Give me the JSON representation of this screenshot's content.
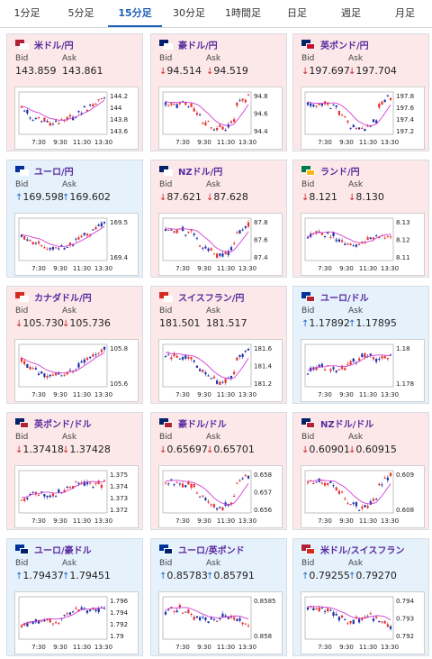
{
  "tabs": [
    {
      "label": "1分足",
      "active": false
    },
    {
      "label": "5分足",
      "active": false
    },
    {
      "label": "15分足",
      "active": true
    },
    {
      "label": "30分足",
      "active": false
    },
    {
      "label": "1時間足",
      "active": false
    },
    {
      "label": "日足",
      "active": false
    },
    {
      "label": "週足",
      "active": false
    },
    {
      "label": "月足",
      "active": false
    }
  ],
  "labels": {
    "bid": "Bid",
    "ask": "Ask"
  },
  "x_ticks": [
    "7:30",
    "9:30",
    "11:30",
    "13:30"
  ],
  "colors": {
    "up": "#1a66c8",
    "down": "#d22626",
    "ma": "#d13fd1",
    "candle_up": "#e53030",
    "candle_down": "#1f2fa8",
    "tint_pink": "#fce8e8",
    "tint_blue": "#e5f1fb"
  },
  "pairs": [
    {
      "name": "米ドル/円",
      "flag1": "#b22234",
      "flag2": "#ffffff",
      "bid": "143.859",
      "ask": "143.861",
      "bid_dir": "",
      "ask_dir": "",
      "tint": "pink",
      "yticks": [
        "144.2",
        "144",
        "143.8",
        "143.6"
      ],
      "ylim": [
        143.5,
        144.25
      ],
      "shape": "dip"
    },
    {
      "name": "豪ドル/円",
      "flag1": "#012169",
      "flag2": "#ffffff",
      "bid": "94.514",
      "ask": "94.519",
      "bid_dir": "down",
      "ask_dir": "down",
      "tint": "pink",
      "yticks": [
        "94.8",
        "94.6",
        "94.4"
      ],
      "ylim": [
        94.3,
        94.85
      ],
      "shape": "vdip"
    },
    {
      "name": "英ポンド/円",
      "flag1": "#012169",
      "flag2": "#c8102e",
      "bid": "197.697",
      "ask": "197.704",
      "bid_dir": "down",
      "ask_dir": "down",
      "tint": "pink",
      "yticks": [
        "197.8",
        "197.6",
        "197.4",
        "197.2"
      ],
      "ylim": [
        197.15,
        197.85
      ],
      "shape": "vdip"
    },
    {
      "name": "ユーロ/円",
      "flag1": "#003399",
      "flag2": "#ffffff",
      "bid": "169.598",
      "ask": "169.602",
      "bid_dir": "up",
      "ask_dir": "up",
      "tint": "blue",
      "yticks": [
        "169.5",
        "169.4"
      ],
      "ylim": [
        169.3,
        169.62
      ],
      "shape": "dip"
    },
    {
      "name": "NZドル/円",
      "flag1": "#012169",
      "flag2": "#ffffff",
      "bid": "87.621",
      "ask": "87.628",
      "bid_dir": "down",
      "ask_dir": "down",
      "tint": "pink",
      "yticks": [
        "87.8",
        "87.6",
        "87.4"
      ],
      "ylim": [
        87.35,
        87.85
      ],
      "shape": "vdip"
    },
    {
      "name": "ランド/円",
      "flag1": "#007a4d",
      "flag2": "#ffb612",
      "bid": "8.121",
      "ask": "8.130",
      "bid_dir": "down",
      "ask_dir": "down",
      "tint": "pink",
      "yticks": [
        "8.13",
        "8.12",
        "8.11"
      ],
      "ylim": [
        8.105,
        8.135
      ],
      "shape": "flat"
    },
    {
      "name": "カナダドル/円",
      "flag1": "#d52b1e",
      "flag2": "#ffffff",
      "bid": "105.730",
      "ask": "105.736",
      "bid_dir": "down",
      "ask_dir": "down",
      "tint": "pink",
      "yticks": [
        "105.8",
        "105.6"
      ],
      "ylim": [
        105.45,
        105.9
      ],
      "shape": "dip"
    },
    {
      "name": "スイスフラン/円",
      "flag1": "#d52b1e",
      "flag2": "#ffffff",
      "bid": "181.501",
      "ask": "181.517",
      "bid_dir": "",
      "ask_dir": "",
      "tint": "pink",
      "yticks": [
        "181.6",
        "181.4",
        "181.2"
      ],
      "ylim": [
        181.15,
        181.65
      ],
      "shape": "vdip"
    },
    {
      "name": "ユーロ/ドル",
      "flag1": "#003399",
      "flag2": "#b22234",
      "bid": "1.17892",
      "ask": "1.17895",
      "bid_dir": "up",
      "ask_dir": "up",
      "tint": "blue",
      "yticks": [
        "1.18",
        "1.178"
      ],
      "ylim": [
        1.1765,
        1.1805
      ],
      "shape": "rise"
    },
    {
      "name": "英ポンド/ドル",
      "flag1": "#012169",
      "flag2": "#b22234",
      "bid": "1.37418",
      "ask": "1.37428",
      "bid_dir": "down",
      "ask_dir": "down",
      "tint": "pink",
      "yticks": [
        "1.375",
        "1.374",
        "1.373",
        "1.372"
      ],
      "ylim": [
        1.3715,
        1.3755
      ],
      "shape": "rise"
    },
    {
      "name": "豪ドル/ドル",
      "flag1": "#012169",
      "flag2": "#b22234",
      "bid": "0.65697",
      "ask": "0.65701",
      "bid_dir": "down",
      "ask_dir": "down",
      "tint": "pink",
      "yticks": [
        "0.658",
        "0.657",
        "0.656"
      ],
      "ylim": [
        0.6555,
        0.6585
      ],
      "shape": "vdip"
    },
    {
      "name": "NZドル/ドル",
      "flag1": "#012169",
      "flag2": "#b22234",
      "bid": "0.60901",
      "ask": "0.60915",
      "bid_dir": "down",
      "ask_dir": "down",
      "tint": "pink",
      "yticks": [
        "0.609",
        "0.608"
      ],
      "ylim": [
        0.6075,
        0.6095
      ],
      "shape": "vdip"
    },
    {
      "name": "ユーロ/豪ドル",
      "flag1": "#003399",
      "flag2": "#012169",
      "bid": "1.79437",
      "ask": "1.79451",
      "bid_dir": "up",
      "ask_dir": "up",
      "tint": "blue",
      "yticks": [
        "1.796",
        "1.794",
        "1.792",
        "1.79"
      ],
      "ylim": [
        1.789,
        1.797
      ],
      "shape": "rise"
    },
    {
      "name": "ユーロ/英ポンド",
      "flag1": "#003399",
      "flag2": "#012169",
      "bid": "0.85783",
      "ask": "0.85791",
      "bid_dir": "up",
      "ask_dir": "up",
      "tint": "blue",
      "yticks": [
        "0.8585",
        "0.858"
      ],
      "ylim": [
        0.8577,
        0.8588
      ],
      "shape": "fall"
    },
    {
      "name": "米ドル/スイスフラン",
      "flag1": "#b22234",
      "flag2": "#d52b1e",
      "bid": "0.79255",
      "ask": "0.79270",
      "bid_dir": "up",
      "ask_dir": "up",
      "tint": "blue",
      "yticks": [
        "0.794",
        "0.793",
        "0.792"
      ],
      "ylim": [
        0.7915,
        0.7945
      ],
      "shape": "fall"
    }
  ]
}
